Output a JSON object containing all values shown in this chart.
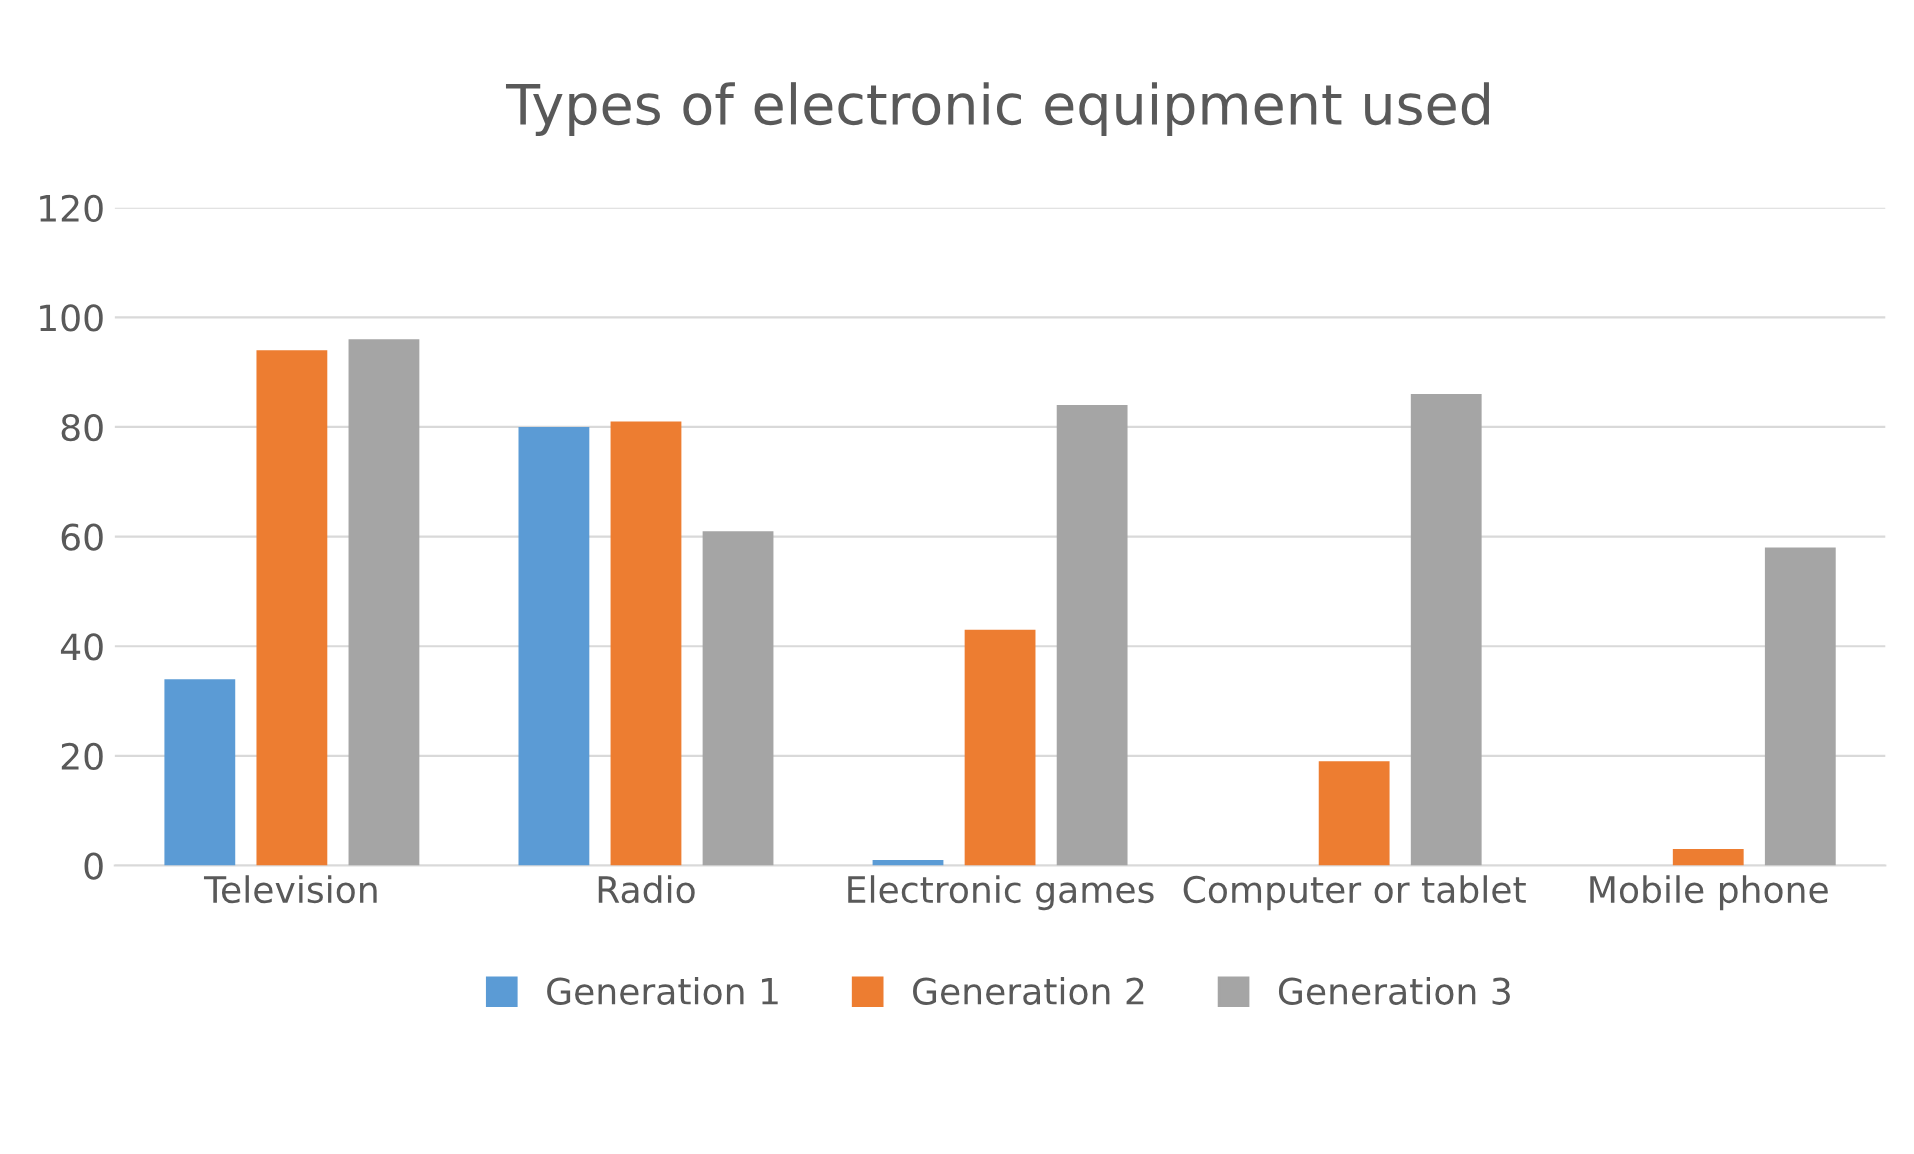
{
  "chart_data": {
    "type": "bar",
    "title": "Types of electronic equipment used",
    "categories": [
      "Television",
      "Radio",
      "Electronic games",
      "Computer or tablet",
      "Mobile phone"
    ],
    "series": [
      {
        "name": "Generation 1",
        "color": "#5b9bd5",
        "values": [
          34,
          80,
          1,
          0,
          0
        ]
      },
      {
        "name": "Generation 2",
        "color": "#ed7d31",
        "values": [
          94,
          81,
          43,
          19,
          3
        ]
      },
      {
        "name": "Generation 3",
        "color": "#a5a5a5",
        "values": [
          96,
          61,
          84,
          86,
          58
        ]
      }
    ],
    "ylim": [
      0,
      120
    ],
    "yticks": [
      0,
      20,
      40,
      60,
      80,
      100,
      120
    ],
    "grid": "y",
    "legend": "bottom"
  }
}
